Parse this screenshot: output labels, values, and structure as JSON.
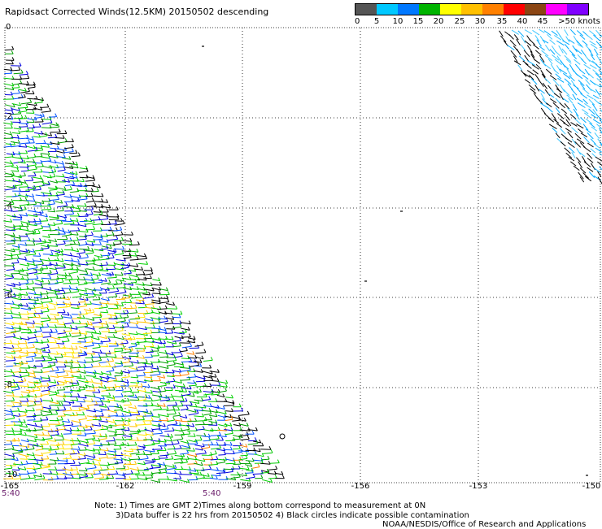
{
  "title": "Rapidsact Corrected Winds(12.5KM) 20150502 descending",
  "colorbar": {
    "colors": [
      "#555555",
      "#999999",
      "#00c8ff",
      "#0078ff",
      "#0000ff",
      "#00b400",
      "#00e000",
      "#ffff00",
      "#ffc000",
      "#ff8000",
      "#ff4000",
      "#ff0000",
      "#aa0000",
      "#8b4513",
      "#ff00ff",
      "#c000ff",
      "#8000ff",
      "#600080",
      "#2a003a"
    ],
    "labels": [
      "0",
      "5",
      "10",
      "15",
      "20",
      "25",
      "30",
      "35",
      "40",
      "45",
      ">50 knots"
    ]
  },
  "axes": {
    "lat_labels": [
      "0",
      "-2",
      "-4",
      "-6",
      "-8",
      "-10"
    ],
    "lon_labels": [
      "-165",
      "-162",
      "-159",
      "-156",
      "-153",
      "-150"
    ],
    "time_labels": [
      "5:40",
      "5:40"
    ]
  },
  "notes": {
    "line1": "Note: 1) Times are GMT 2)Times along bottom correspond to measurement at 0N",
    "line2": "3)Data buffer is 22 hrs from 20150502 4) Black circles indicate possible contamination",
    "line3": "NOAA/NESDIS/Office of Research and Applications"
  }
}
